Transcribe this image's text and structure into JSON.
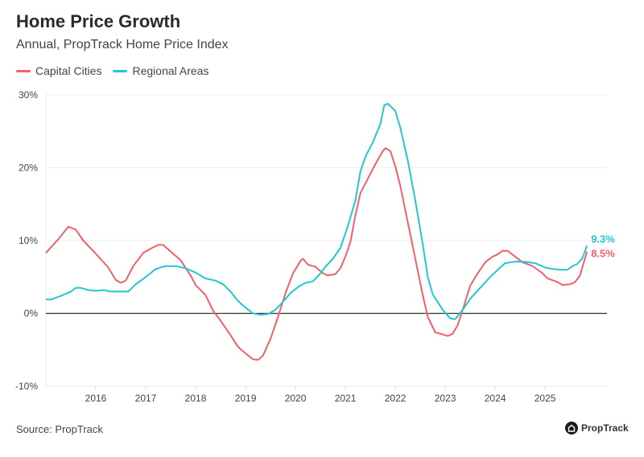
{
  "title": "Home Price Growth",
  "subtitle": "Annual, PropTrack Home Price Index",
  "source": "Source: PropTrack",
  "logo_text": "PropTrack",
  "chart_data": {
    "type": "line",
    "title": "Home Price Growth",
    "subtitle": "Annual, PropTrack Home Price Index",
    "xlabel": "",
    "ylabel": "",
    "xlim": [
      2015.0,
      2026.24
    ],
    "ylim": [
      -10,
      30
    ],
    "x_ticks": [
      2016,
      2017,
      2018,
      2019,
      2020,
      2021,
      2022,
      2023,
      2024,
      2025
    ],
    "x_tick_labels": [
      "2016",
      "2017",
      "2018",
      "2019",
      "2020",
      "2021",
      "2022",
      "2023",
      "2024",
      "2025"
    ],
    "y_ticks": [
      -10,
      0,
      10,
      20,
      30
    ],
    "y_tick_labels": [
      "-10%",
      "0%",
      "10%",
      "20%",
      "30%"
    ],
    "grid": "horizontal",
    "legend": "top-left",
    "series": [
      {
        "name": "Capital Cities",
        "color": "#f0606a",
        "end_label": "8.5%",
        "x": [
          2015.0,
          2015.25,
          2015.45,
          2015.6,
          2015.75,
          2016.0,
          2016.25,
          2016.4,
          2016.5,
          2016.6,
          2016.75,
          2016.95,
          2017.1,
          2017.25,
          2017.35,
          2017.5,
          2017.7,
          2017.9,
          2018.0,
          2018.2,
          2018.35,
          2018.5,
          2018.7,
          2018.85,
          2019.0,
          2019.15,
          2019.25,
          2019.35,
          2019.5,
          2019.65,
          2019.8,
          2019.95,
          2020.1,
          2020.15,
          2020.25,
          2020.4,
          2020.55,
          2020.65,
          2020.8,
          2020.9,
          2021.0,
          2021.1,
          2021.2,
          2021.3,
          2021.45,
          2021.6,
          2021.75,
          2021.8,
          2021.9,
          2022.0,
          2022.1,
          2022.25,
          2022.4,
          2022.55,
          2022.65,
          2022.8,
          2022.95,
          2023.05,
          2023.15,
          2023.25,
          2023.35,
          2023.5,
          2023.65,
          2023.8,
          2023.95,
          2024.05,
          2024.15,
          2024.25,
          2024.4,
          2024.55,
          2024.75,
          2024.95,
          2025.05,
          2025.25,
          2025.35,
          2025.5,
          2025.6,
          2025.7,
          2025.84
        ],
        "y": [
          8.3,
          10.2,
          11.9,
          11.5,
          10,
          8.2,
          6.3,
          4.6,
          4.2,
          4.5,
          6.5,
          8.3,
          8.9,
          9.4,
          9.4,
          8.5,
          7.3,
          5.2,
          3.9,
          2.5,
          0.4,
          -1.0,
          -3.0,
          -4.6,
          -5.5,
          -6.3,
          -6.4,
          -5.8,
          -3.5,
          -0.5,
          2.8,
          5.5,
          7.2,
          7.5,
          6.7,
          6.4,
          5.5,
          5.2,
          5.4,
          6.2,
          7.8,
          9.8,
          13.5,
          16.5,
          18.5,
          20.5,
          22.3,
          22.7,
          22.3,
          20.2,
          17.5,
          12.5,
          7.5,
          2.5,
          -0.5,
          -2.6,
          -2.9,
          -3.1,
          -2.8,
          -1.6,
          0.5,
          3.8,
          5.5,
          7.0,
          7.8,
          8.1,
          8.6,
          8.6,
          7.8,
          7.0,
          6.5,
          5.5,
          4.8,
          4.3,
          3.9,
          4.0,
          4.3,
          5.2,
          8.5
        ]
      },
      {
        "name": "Regional Areas",
        "color": "#22c7cf",
        "end_label": "9.3%",
        "x": [
          2015.0,
          2015.1,
          2015.3,
          2015.5,
          2015.6,
          2015.7,
          2015.85,
          2016.0,
          2016.15,
          2016.3,
          2016.5,
          2016.65,
          2016.8,
          2017.0,
          2017.2,
          2017.4,
          2017.6,
          2017.8,
          2018.0,
          2018.2,
          2018.4,
          2018.55,
          2018.7,
          2018.85,
          2019.0,
          2019.15,
          2019.3,
          2019.45,
          2019.6,
          2019.75,
          2019.9,
          2020.05,
          2020.2,
          2020.35,
          2020.5,
          2020.6,
          2020.75,
          2020.9,
          2021.05,
          2021.2,
          2021.3,
          2021.4,
          2021.55,
          2021.7,
          2021.78,
          2021.85,
          2022.0,
          2022.1,
          2022.25,
          2022.4,
          2022.55,
          2022.65,
          2022.75,
          2022.95,
          2023.1,
          2023.2,
          2023.35,
          2023.5,
          2023.7,
          2023.9,
          2024.1,
          2024.2,
          2024.4,
          2024.6,
          2024.8,
          2025.0,
          2025.15,
          2025.3,
          2025.45,
          2025.55,
          2025.65,
          2025.75,
          2025.84
        ],
        "y": [
          1.9,
          1.9,
          2.4,
          3.0,
          3.5,
          3.5,
          3.2,
          3.1,
          3.2,
          3.0,
          3.0,
          3.0,
          4.0,
          5.0,
          6.1,
          6.5,
          6.5,
          6.2,
          5.6,
          4.8,
          4.5,
          4.0,
          3.0,
          1.7,
          0.8,
          0.0,
          -0.2,
          -0.1,
          0.5,
          1.6,
          2.8,
          3.6,
          4.2,
          4.4,
          5.5,
          6.4,
          7.5,
          9.0,
          12.0,
          15.5,
          19.5,
          21.5,
          23.5,
          26,
          28.6,
          28.8,
          27.8,
          25.5,
          21,
          15.5,
          9.5,
          5.0,
          2.6,
          0.5,
          -0.7,
          -0.8,
          0.5,
          2.0,
          3.5,
          5.0,
          6.3,
          6.9,
          7.1,
          7.1,
          6.9,
          6.3,
          6.1,
          6.0,
          6.0,
          6.5,
          6.8,
          7.6,
          9.3
        ]
      }
    ]
  }
}
